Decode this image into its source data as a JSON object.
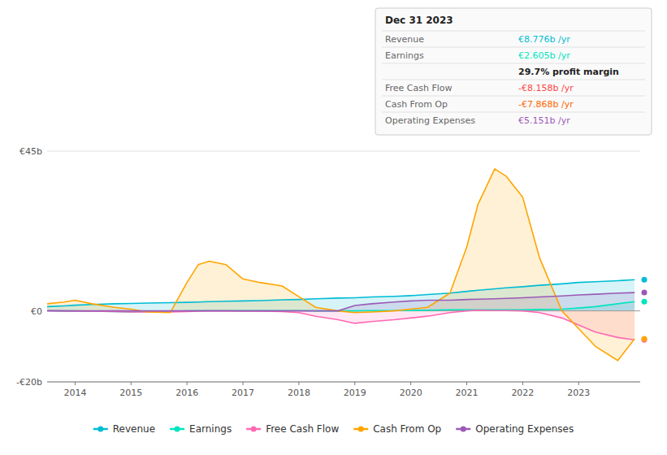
{
  "chart_data": {
    "type": "area",
    "x": [
      2013.5,
      2013.8,
      2014.0,
      2014.3,
      2014.7,
      2015.0,
      2015.3,
      2015.7,
      2016.0,
      2016.2,
      2016.4,
      2016.7,
      2017.0,
      2017.3,
      2017.7,
      2018.0,
      2018.3,
      2018.7,
      2019.0,
      2019.3,
      2019.7,
      2020.0,
      2020.3,
      2020.7,
      2021.0,
      2021.2,
      2021.5,
      2021.7,
      2022.0,
      2022.3,
      2022.7,
      2023.0,
      2023.3,
      2023.7,
      2024.0
    ],
    "series": [
      {
        "name": "Revenue",
        "color": "#00bcd4",
        "values": [
          1.2,
          1.4,
          1.6,
          1.8,
          2.0,
          2.1,
          2.2,
          2.3,
          2.4,
          2.5,
          2.6,
          2.7,
          2.8,
          2.9,
          3.1,
          3.2,
          3.4,
          3.6,
          3.7,
          3.9,
          4.1,
          4.3,
          4.6,
          5.0,
          5.5,
          5.8,
          6.2,
          6.5,
          6.8,
          7.2,
          7.6,
          8.0,
          8.2,
          8.5,
          8.776
        ]
      },
      {
        "name": "Earnings",
        "color": "#00e5bf",
        "values": [
          0.1,
          0.0,
          0.0,
          -0.1,
          -0.2,
          -0.3,
          -0.2,
          -0.1,
          0.0,
          0.1,
          0.1,
          0.1,
          0.1,
          0.1,
          0.1,
          0.1,
          0.0,
          0.0,
          0.0,
          0.1,
          0.1,
          0.1,
          0.2,
          0.3,
          0.3,
          0.3,
          0.3,
          0.3,
          0.3,
          0.4,
          0.5,
          0.8,
          1.2,
          2.0,
          2.605
        ]
      },
      {
        "name": "Free Cash Flow",
        "color": "#ff69b4",
        "values": [
          0.1,
          0.0,
          -0.1,
          -0.1,
          -0.2,
          -0.3,
          -0.3,
          -0.3,
          -0.2,
          -0.1,
          0.0,
          0.0,
          -0.1,
          -0.1,
          -0.2,
          -0.5,
          -1.5,
          -2.5,
          -3.5,
          -3.0,
          -2.5,
          -2.0,
          -1.5,
          -0.5,
          0.0,
          0.2,
          0.1,
          0.1,
          0.0,
          -0.5,
          -2.0,
          -4.0,
          -6.0,
          -7.5,
          -8.158
        ]
      },
      {
        "name": "Cash From Op",
        "color": "#ffa500",
        "values": [
          2.0,
          2.5,
          3.0,
          2.0,
          1.0,
          0.5,
          -0.3,
          -0.5,
          8.0,
          13.0,
          14.0,
          13.0,
          9.0,
          8.0,
          7.0,
          4.0,
          1.0,
          0.0,
          -0.5,
          -0.3,
          0.0,
          0.5,
          1.0,
          5.0,
          18.0,
          30.0,
          40.0,
          38.0,
          32.0,
          15.0,
          0.0,
          -5.0,
          -10.0,
          -14.0,
          -7.868
        ]
      },
      {
        "name": "Operating Expenses",
        "color": "#9b59b6",
        "values": [
          0.0,
          0.0,
          0.0,
          0.0,
          0.0,
          0.0,
          0.0,
          0.0,
          0.0,
          0.0,
          0.0,
          0.0,
          0.0,
          0.0,
          0.0,
          0.0,
          0.0,
          0.0,
          1.5,
          2.0,
          2.5,
          2.8,
          3.0,
          3.0,
          3.2,
          3.3,
          3.4,
          3.5,
          3.7,
          3.9,
          4.2,
          4.5,
          4.7,
          5.0,
          5.151
        ]
      }
    ],
    "xlim": [
      2013.5,
      2024.1
    ],
    "xticks": [
      2014,
      2015,
      2016,
      2017,
      2018,
      2019,
      2020,
      2021,
      2022,
      2023
    ],
    "ylim": [
      -20,
      45
    ],
    "yticks": [
      {
        "value": -20,
        "label": "-€20b"
      },
      {
        "value": 0,
        "label": "€0"
      },
      {
        "value": 45,
        "label": "€45b"
      }
    ],
    "grid": true,
    "legend": "bottom",
    "annotations": [
      {
        "text": "Dec 31 2023"
      },
      {
        "label": "Revenue",
        "text": "€8.776b /yr",
        "color": "#00bcd4"
      },
      {
        "label": "Earnings",
        "text": "€2.605b /yr",
        "color": "#00e5bf"
      },
      {
        "text": "29.7% profit margin"
      },
      {
        "label": "Free Cash Flow",
        "text": "-€8.158b /yr",
        "color": "#ff4444"
      },
      {
        "label": "Cash From Op",
        "text": "-€7.868b /yr",
        "color": "#ff6600"
      },
      {
        "label": "Operating Expenses",
        "text": "€5.151b /yr",
        "color": "#9b59b6"
      }
    ]
  }
}
